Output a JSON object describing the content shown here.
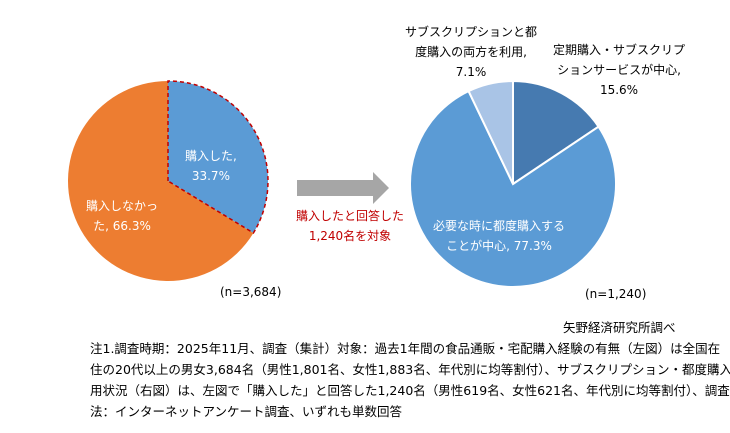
{
  "chart_data": [
    {
      "type": "pie",
      "title": "",
      "slices": [
        {
          "label": "購入した,",
          "value": 33.7,
          "value_label": "33.7%",
          "color": "#5B9BD5",
          "highlight": true
        },
        {
          "label": "購入しなかっ た,",
          "value": 66.3,
          "value_label": "66.3%",
          "color": "#ED7D31"
        }
      ],
      "n_label": "(n=3,684)"
    },
    {
      "type": "pie",
      "title": "",
      "slices": [
        {
          "label": "定期購入・サブスクリプションサービスが中心,",
          "value": 15.6,
          "value_label": "15.6%",
          "color": "#467AB0"
        },
        {
          "label": "必要な時に都度購入することが中心,",
          "value": 77.3,
          "value_label": "77.3%",
          "color": "#5B9BD5"
        },
        {
          "label": "サブスクリプションと都度購入の両方を利用,",
          "value": 7.1,
          "value_label": "7.1%",
          "color": "#A9C4E6"
        }
      ],
      "n_label": "(n=1,240)"
    }
  ],
  "arrow_caption": [
    "購入したと回答した",
    "1,240名を対象"
  ],
  "labels": {
    "l_bought": [
      "購入した,",
      "33.7%"
    ],
    "l_not": [
      "購入しなかっ",
      "た, 66.3%"
    ],
    "r_sub": [
      "定期購入・サブスクリプ",
      "ションサービスが中心,",
      "15.6%"
    ],
    "r_each": [
      "必要な時に都度購入する",
      "ことが中心, 77.3%"
    ],
    "r_both": [
      "サブスクリプションと都",
      "度購入の両方を利用,",
      "7.1%"
    ]
  },
  "source": "矢野経済研究所調べ",
  "notes": [
    "注1.調査時期：2025年11月、調査（集計）対象：過去1年間の食品通販・宅配購入経験の有無（左図）は全国在",
    "住の20代以上の男女3,684名（男性1,801名、女性1,883名、年代別に均等割付）、サブスクリプション・都度購入の利",
    "用状況（右図）は、左図で「購入した」と回答した1,240名（男性619名、女性621名、年代別に均等割付）、調査方",
    "法：インターネットアンケート調査、いずれも単数回答"
  ]
}
